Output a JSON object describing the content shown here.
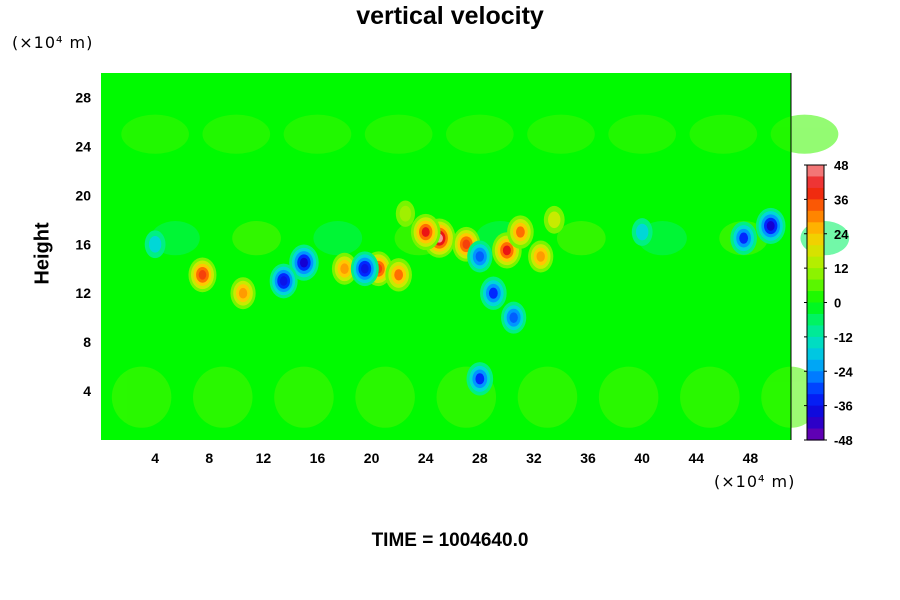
{
  "chart_data": {
    "type": "heatmap",
    "title": "vertical velocity",
    "y_unit": "(×10⁴ m)",
    "x_unit": "(×10⁴ m)",
    "ylabel": "Height",
    "xlabel": "",
    "footer": "TIME = 1004640.0",
    "xlim": [
      0,
      51
    ],
    "ylim": [
      0,
      30
    ],
    "x_ticks": [
      "4",
      "8",
      "12",
      "16",
      "20",
      "24",
      "28",
      "32",
      "36",
      "40",
      "44",
      "48"
    ],
    "x_tick_values": [
      4,
      8,
      12,
      16,
      20,
      24,
      28,
      32,
      36,
      40,
      44,
      48
    ],
    "y_ticks": [
      "4",
      "8",
      "12",
      "16",
      "20",
      "24",
      "28"
    ],
    "y_tick_values": [
      4,
      8,
      12,
      16,
      20,
      24,
      28
    ],
    "colorbar": {
      "min": -48,
      "max": 48,
      "step": 4,
      "tick_labels": [
        "48",
        "36",
        "24",
        "12",
        "0",
        "-12",
        "-24",
        "-36",
        "-48"
      ],
      "tick_values": [
        48,
        36,
        24,
        12,
        0,
        -12,
        -24,
        -36,
        -48
      ]
    },
    "features": [
      {
        "x": 25,
        "y": 16.5,
        "value": 48
      },
      {
        "x": 24,
        "y": 17,
        "value": 40
      },
      {
        "x": 27,
        "y": 16,
        "value": 36
      },
      {
        "x": 30,
        "y": 15.5,
        "value": 40
      },
      {
        "x": 31,
        "y": 17,
        "value": 32
      },
      {
        "x": 32.5,
        "y": 15,
        "value": 28
      },
      {
        "x": 18,
        "y": 14,
        "value": 28
      },
      {
        "x": 20.5,
        "y": 14,
        "value": 36
      },
      {
        "x": 22,
        "y": 13.5,
        "value": 32
      },
      {
        "x": 7.5,
        "y": 13.5,
        "value": 36
      },
      {
        "x": 10.5,
        "y": 12,
        "value": 28
      },
      {
        "x": 15,
        "y": 14.5,
        "value": -40
      },
      {
        "x": 13.5,
        "y": 13,
        "value": -36
      },
      {
        "x": 19.5,
        "y": 14,
        "value": -36
      },
      {
        "x": 29,
        "y": 12,
        "value": -32
      },
      {
        "x": 28,
        "y": 15,
        "value": -28
      },
      {
        "x": 30.5,
        "y": 10,
        "value": -28
      },
      {
        "x": 28,
        "y": 5,
        "value": -32
      },
      {
        "x": 49.5,
        "y": 17.5,
        "value": -40
      },
      {
        "x": 47.5,
        "y": 16.5,
        "value": -32
      },
      {
        "x": 4,
        "y": 16,
        "value": -16
      },
      {
        "x": 40,
        "y": 17,
        "value": -16
      },
      {
        "x": 33.5,
        "y": 18,
        "value": 16
      },
      {
        "x": 22.5,
        "y": 18.5,
        "value": 12
      }
    ]
  }
}
